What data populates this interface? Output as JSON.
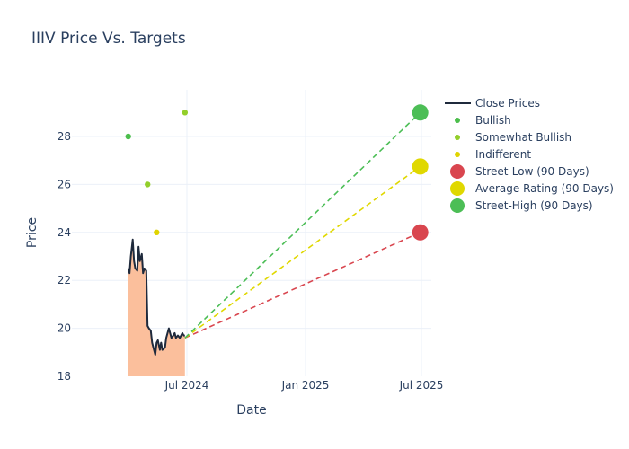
{
  "title": "IIIV Price Vs. Targets",
  "chart_data": {
    "type": "line",
    "title": "IIIV Price Vs. Targets",
    "xlabel": "Date",
    "ylabel": "Price",
    "ylim": [
      18,
      29.8
    ],
    "x_ticks": [
      "Jul 2024",
      "Jan 2025",
      "Jul 2025"
    ],
    "y_ticks": [
      18,
      20,
      22,
      24,
      26,
      28
    ],
    "grid": true,
    "legend_position": "right",
    "legend": [
      "Close Prices",
      "Bullish",
      "Somewhat Bullish",
      "Indifferent",
      "Street-Low (90 Days)",
      "Average Rating (90 Days)",
      "Street-High (90 Days)"
    ],
    "series": [
      {
        "name": "Close Prices",
        "type": "line+area",
        "color": "#1f2a3c",
        "fill": "#fbbf9c",
        "x": [
          "2024-04-01",
          "2024-04-03",
          "2024-04-05",
          "2024-04-08",
          "2024-04-10",
          "2024-04-12",
          "2024-04-15",
          "2024-04-17",
          "2024-04-19",
          "2024-04-22",
          "2024-04-24",
          "2024-04-26",
          "2024-04-29",
          "2024-05-01",
          "2024-05-03",
          "2024-05-06",
          "2024-05-08",
          "2024-05-10",
          "2024-05-13",
          "2024-05-15",
          "2024-05-17",
          "2024-05-20",
          "2024-05-22",
          "2024-05-24",
          "2024-05-28",
          "2024-05-30",
          "2024-06-03",
          "2024-06-05",
          "2024-06-07",
          "2024-06-10",
          "2024-06-12",
          "2024-06-14",
          "2024-06-17",
          "2024-06-20",
          "2024-06-24",
          "2024-06-26",
          "2024-06-28"
        ],
        "values": [
          22.5,
          22.3,
          23.0,
          23.7,
          22.8,
          22.5,
          22.4,
          23.4,
          22.8,
          23.1,
          22.3,
          22.5,
          22.4,
          20.1,
          20.0,
          19.9,
          19.4,
          19.2,
          18.9,
          19.4,
          19.5,
          19.1,
          19.4,
          19.1,
          19.2,
          19.6,
          20.0,
          19.8,
          19.6,
          19.7,
          19.8,
          19.6,
          19.7,
          19.6,
          19.8,
          19.7,
          19.7
        ]
      },
      {
        "name": "Bullish",
        "type": "scatter",
        "color": "#4cbe4c",
        "points": [
          {
            "x": "2024-04-01",
            "y": 28
          }
        ]
      },
      {
        "name": "Somewhat Bullish",
        "type": "scatter",
        "color": "#93cf2b",
        "points": [
          {
            "x": "2024-05-01",
            "y": 26
          },
          {
            "x": "2024-06-28",
            "y": 29
          }
        ]
      },
      {
        "name": "Indifferent",
        "type": "scatter",
        "color": "#e0d400",
        "points": [
          {
            "x": "2024-05-15",
            "y": 24
          }
        ]
      },
      {
        "name": "Street-Low (90 Days)",
        "type": "scatter+dash",
        "color": "#d9464f",
        "start": {
          "x": "2024-06-28",
          "y": 19.6
        },
        "end": {
          "x": "2025-06-28",
          "y": 24
        }
      },
      {
        "name": "Average Rating (90 Days)",
        "type": "scatter+dash",
        "color": "#e0d800",
        "start": {
          "x": "2024-06-28",
          "y": 19.6
        },
        "end": {
          "x": "2025-06-28",
          "y": 26.75
        }
      },
      {
        "name": "Street-High (90 Days)",
        "type": "scatter+dash",
        "color": "#4cbe56",
        "start": {
          "x": "2024-06-28",
          "y": 19.6
        },
        "end": {
          "x": "2025-06-28",
          "y": 29
        }
      }
    ]
  },
  "axes": {
    "x_title": "Date",
    "y_title": "Price",
    "x_ticks": [
      {
        "label": "Jul 2024",
        "x": 208
      },
      {
        "label": "Jan 2025",
        "x": 340
      },
      {
        "label": "Jul 2025",
        "x": 469
      }
    ],
    "y_ticks": [
      {
        "label": "18",
        "value": 18
      },
      {
        "label": "20",
        "value": 20
      },
      {
        "label": "22",
        "value": 22
      },
      {
        "label": "24",
        "value": 24
      },
      {
        "label": "26",
        "value": 26
      },
      {
        "label": "28",
        "value": 28
      }
    ]
  },
  "legend": {
    "items": [
      {
        "label": "Close Prices",
        "kind": "line",
        "color": "#1f2a3c"
      },
      {
        "label": "Bullish",
        "kind": "dot-small",
        "color": "#4cbe4c"
      },
      {
        "label": "Somewhat Bullish",
        "kind": "dot-small",
        "color": "#93cf2b"
      },
      {
        "label": "Indifferent",
        "kind": "dot-small",
        "color": "#e0d400"
      },
      {
        "label": "Street-Low (90 Days)",
        "kind": "dot-large",
        "color": "#d9464f"
      },
      {
        "label": "Average Rating (90 Days)",
        "kind": "dot-large",
        "color": "#e0d800"
      },
      {
        "label": "Street-High (90 Days)",
        "kind": "dot-large",
        "color": "#4cbe56"
      }
    ]
  }
}
